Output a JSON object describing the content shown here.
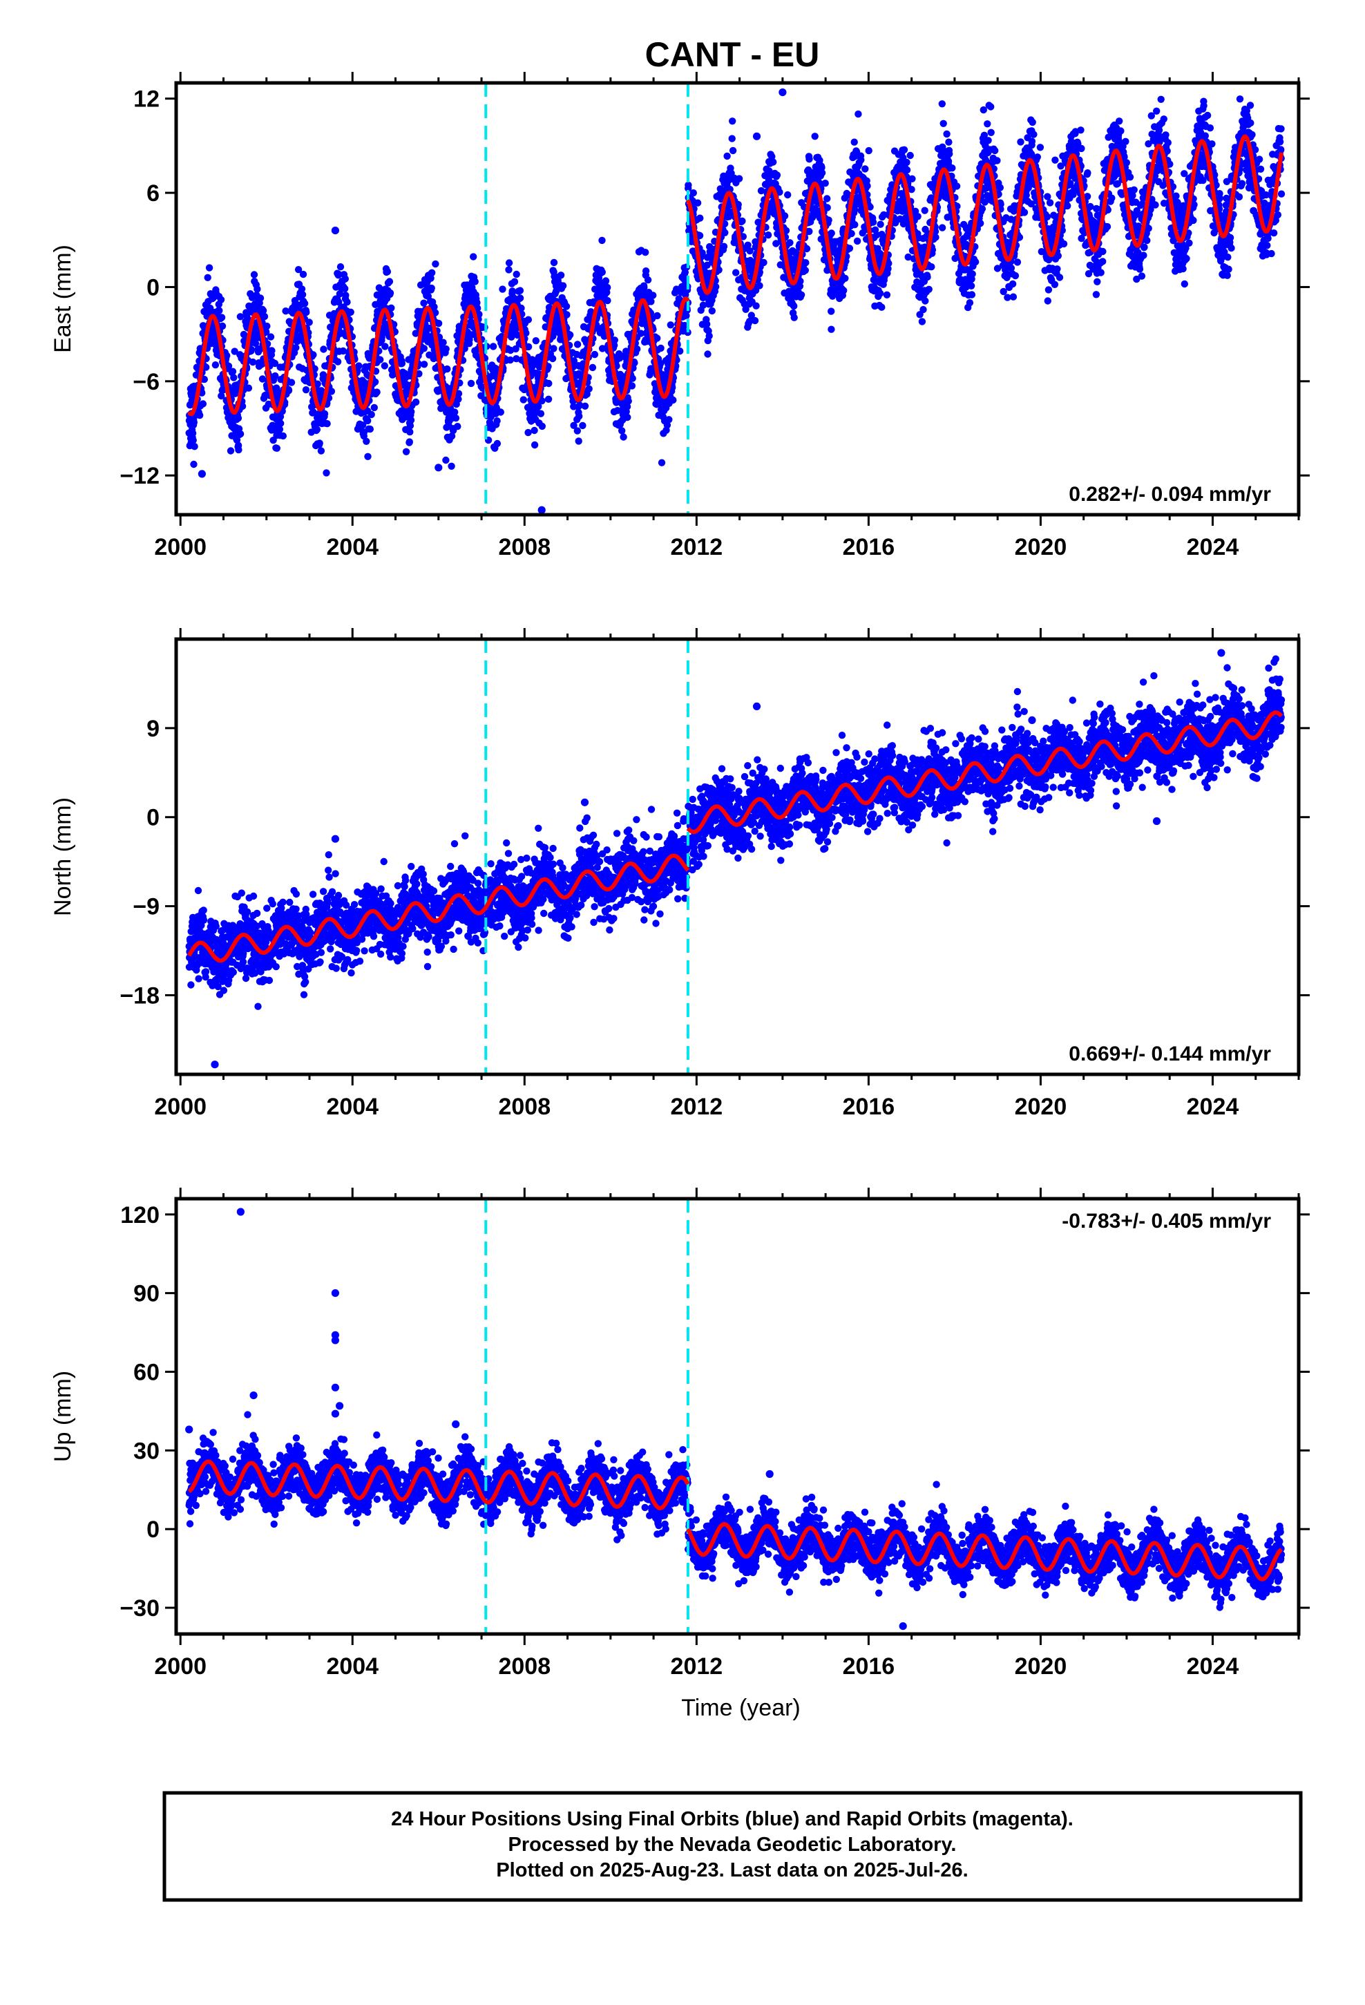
{
  "title": "CANT - EU",
  "footer": {
    "line1": "24 Hour Positions Using Final Orbits (blue) and Rapid Orbits (magenta).",
    "line2": "Processed by the Nevada Geodetic Laboratory.",
    "line3": "Plotted on 2025-Aug-23. Last data on 2025-Jul-26."
  },
  "colors": {
    "data": "#0000ff",
    "model": "#ff0000",
    "offsets": "#00e5ee",
    "axes": "#000000"
  },
  "chart_data": [
    {
      "type": "scatter",
      "id": "east",
      "ylabel": "East (mm)",
      "xlabel": "",
      "rate_label": "0.282+/- 0.094 mm/yr",
      "rate_position": "bottom-right",
      "xlim": [
        1999.9,
        2026.0
      ],
      "ylim": [
        -14.5,
        13.0
      ],
      "xticks": [
        2000,
        2004,
        2008,
        2012,
        2016,
        2020,
        2024
      ],
      "yticks": [
        -12,
        -6,
        0,
        6,
        12
      ],
      "offsets": [
        2007.1,
        2011.8
      ],
      "model": {
        "segments": [
          {
            "start": 2000.2,
            "end": 2011.8,
            "value_at_start": -5.0,
            "slope": 0.1
          },
          {
            "start": 2011.8,
            "end": 2025.6,
            "value_at_start": 2.6,
            "slope": 0.3
          }
        ],
        "annual_amplitude": 3.1,
        "annual_phase": 0.5
      },
      "scatter_sigma": 1.3,
      "outliers": [
        [
          2013.4,
          9.6
        ],
        [
          2014.0,
          12.4
        ],
        [
          2003.6,
          3.6
        ],
        [
          2008.4,
          -14.2
        ],
        [
          2006.0,
          -11.5
        ],
        [
          2000.5,
          -11.9
        ]
      ]
    },
    {
      "type": "scatter",
      "id": "north",
      "ylabel": "North (mm)",
      "xlabel": "",
      "rate_label": "0.669+/- 0.144 mm/yr",
      "rate_position": "bottom-right",
      "xlim": [
        1999.9,
        2026.0
      ],
      "ylim": [
        -26.0,
        18.0
      ],
      "xticks": [
        2000,
        2004,
        2008,
        2012,
        2016,
        2020,
        2024
      ],
      "yticks": [
        -18,
        -9,
        0,
        9
      ],
      "offsets": [
        2007.1,
        2011.8
      ],
      "model": {
        "segments": [
          {
            "start": 2000.2,
            "end": 2011.8,
            "value_at_start": -14.0,
            "slope": 0.8
          },
          {
            "start": 2011.8,
            "end": 2025.6,
            "value_at_start": -0.5,
            "slope": 0.73
          }
        ],
        "annual_amplitude": 1.1,
        "annual_phase": 0.2
      },
      "scatter_sigma": 1.7,
      "outliers": [
        [
          2000.8,
          -25.0
        ],
        [
          2009.4,
          1.5
        ],
        [
          2003.6,
          -2.2
        ],
        [
          2013.4,
          11.2
        ],
        [
          2024.2,
          16.6
        ],
        [
          2019.8,
          9.8
        ],
        [
          2022.7,
          -0.4
        ]
      ]
    },
    {
      "type": "scatter",
      "id": "up",
      "ylabel": "Up (mm)",
      "xlabel": "Time (year)",
      "rate_label": "-0.783+/- 0.405 mm/yr",
      "rate_position": "top-right",
      "xlim": [
        1999.9,
        2026.0
      ],
      "ylim": [
        -40.0,
        126.0
      ],
      "xticks": [
        2000,
        2004,
        2008,
        2012,
        2016,
        2020,
        2024
      ],
      "yticks": [
        -30,
        0,
        30,
        60,
        90,
        120
      ],
      "offsets": [
        2007.1,
        2011.8
      ],
      "model": {
        "segments": [
          {
            "start": 2000.2,
            "end": 2011.8,
            "value_at_start": 20.0,
            "slope": -0.55
          },
          {
            "start": 2011.8,
            "end": 2025.6,
            "value_at_start": -3.5,
            "slope": -0.72
          }
        ],
        "annual_amplitude": 6.0,
        "annual_phase": 0.4
      },
      "scatter_sigma": 4.5,
      "outliers": [
        [
          2001.4,
          121.0
        ],
        [
          2003.6,
          90.0
        ],
        [
          2003.6,
          74.0
        ],
        [
          2003.6,
          72.0
        ],
        [
          2003.6,
          54.0
        ],
        [
          2003.7,
          47.0
        ],
        [
          2001.7,
          51.0
        ],
        [
          2003.6,
          44.0
        ],
        [
          2006.4,
          40.0
        ],
        [
          2013.7,
          21.0
        ],
        [
          2016.8,
          -37.0
        ],
        [
          2000.2,
          38.0
        ]
      ]
    }
  ]
}
